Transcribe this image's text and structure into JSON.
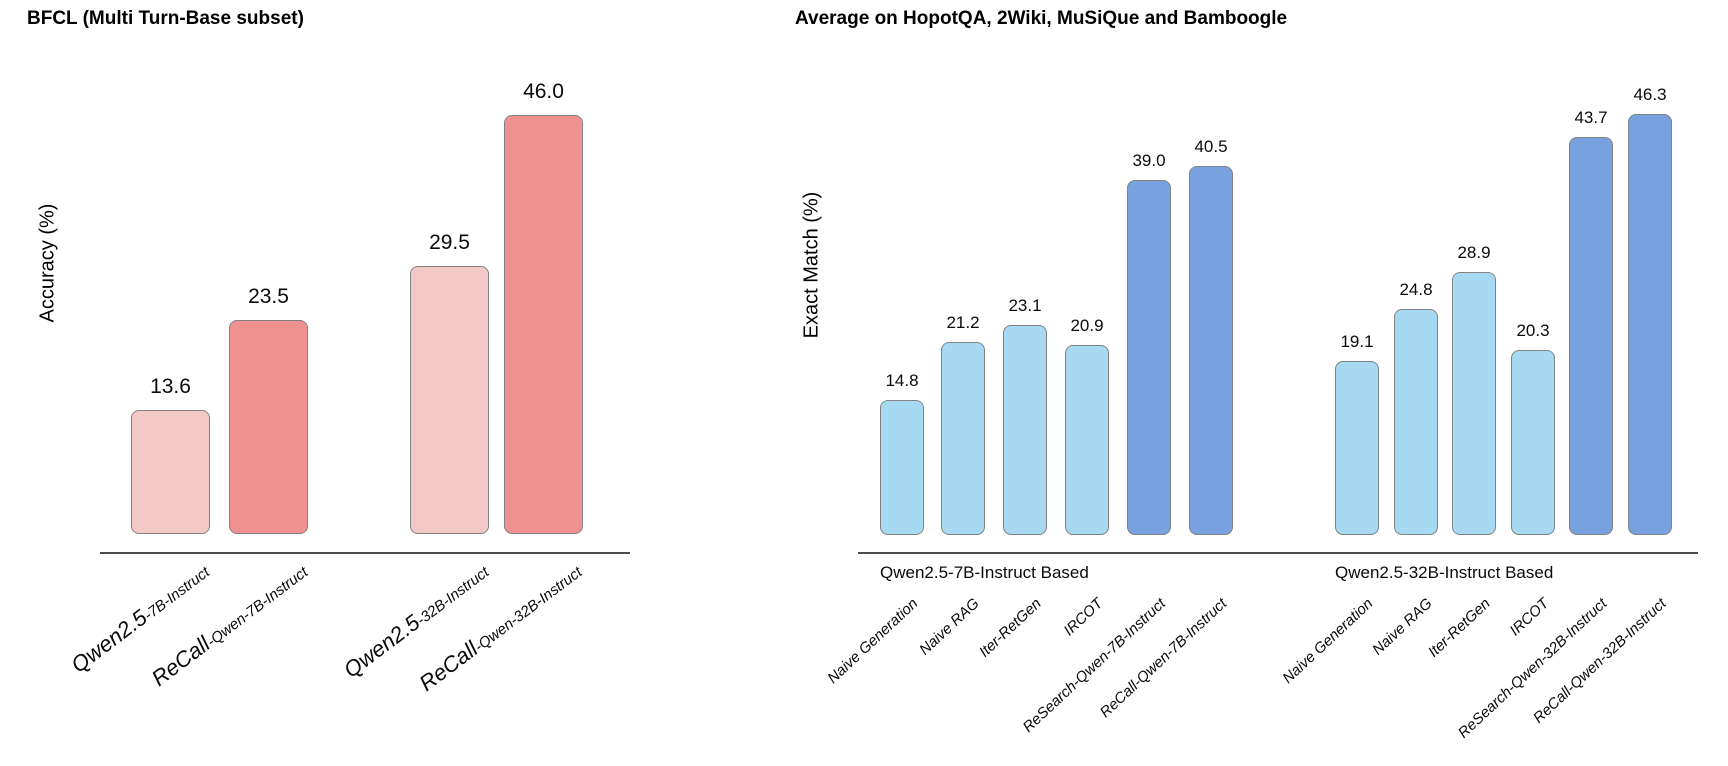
{
  "chart_data": [
    {
      "type": "bar",
      "title": "BFCL (Multi Turn-Base subset)",
      "xlabel": "",
      "ylabel": "Accuracy (%)",
      "categories": [
        "Qwen2.5-7B-Instruct",
        "ReCall-Qwen-7B-Instruct",
        "Qwen2.5-32B-Instruct",
        "ReCall-Qwen-32B-Instruct"
      ],
      "category_parts": [
        [
          "Qwen2.5",
          "-7B-Instruct"
        ],
        [
          "ReCall",
          "-Qwen-7B-Instruct"
        ],
        [
          "Qwen2.5",
          "-32B-Instruct"
        ],
        [
          "ReCall",
          "-Qwen-32B-Instruct"
        ]
      ],
      "values": [
        13.6,
        23.5,
        29.5,
        46.0
      ],
      "bar_colors": [
        "#f5c8c8",
        "#f09191",
        "#f5c8c8",
        "#f09191"
      ],
      "bar_border_color": "#828282",
      "ylim": [
        0,
        50
      ],
      "grid": false,
      "legend": "none",
      "value_labels": true
    },
    {
      "type": "bar",
      "title": "Average on HopotQA, 2Wiki, MuSiQue and Bamboogle",
      "xlabel": "",
      "ylabel": "Exact Match (%)",
      "light_color": "#a7daf2",
      "dark_color": "#78a1e0",
      "bar_border_color": "#828282",
      "ylim": [
        0,
        50
      ],
      "grid": false,
      "legend": "none",
      "value_labels": true,
      "groups": [
        {
          "group_label": "Qwen2.5-7B-Instruct Based",
          "categories": [
            "Naive Generation",
            "Naive RAG",
            "Iter-RetGen",
            "IRCOT",
            "ReSearch-Qwen-7B-Instruct",
            "ReCall-Qwen-7B-Instruct"
          ],
          "values": [
            14.8,
            21.2,
            23.1,
            20.9,
            39.0,
            40.5
          ],
          "bar_colors": [
            "#a7daf2",
            "#a7daf2",
            "#a7daf2",
            "#a7daf2",
            "#78a1e0",
            "#78a1e0"
          ]
        },
        {
          "group_label": "Qwen2.5-32B-Instruct Based",
          "categories": [
            "Naive Generation",
            "Naive RAG",
            "Iter-RetGen",
            "IRCOT",
            "ReSearch-Qwen-32B-Instruct",
            "ReCall-Qwen-32B-Instruct"
          ],
          "values": [
            19.1,
            24.8,
            28.9,
            20.3,
            43.7,
            46.3
          ],
          "bar_colors": [
            "#a7daf2",
            "#a7daf2",
            "#a7daf2",
            "#a7daf2",
            "#78a1e0",
            "#78a1e0"
          ]
        }
      ]
    }
  ]
}
